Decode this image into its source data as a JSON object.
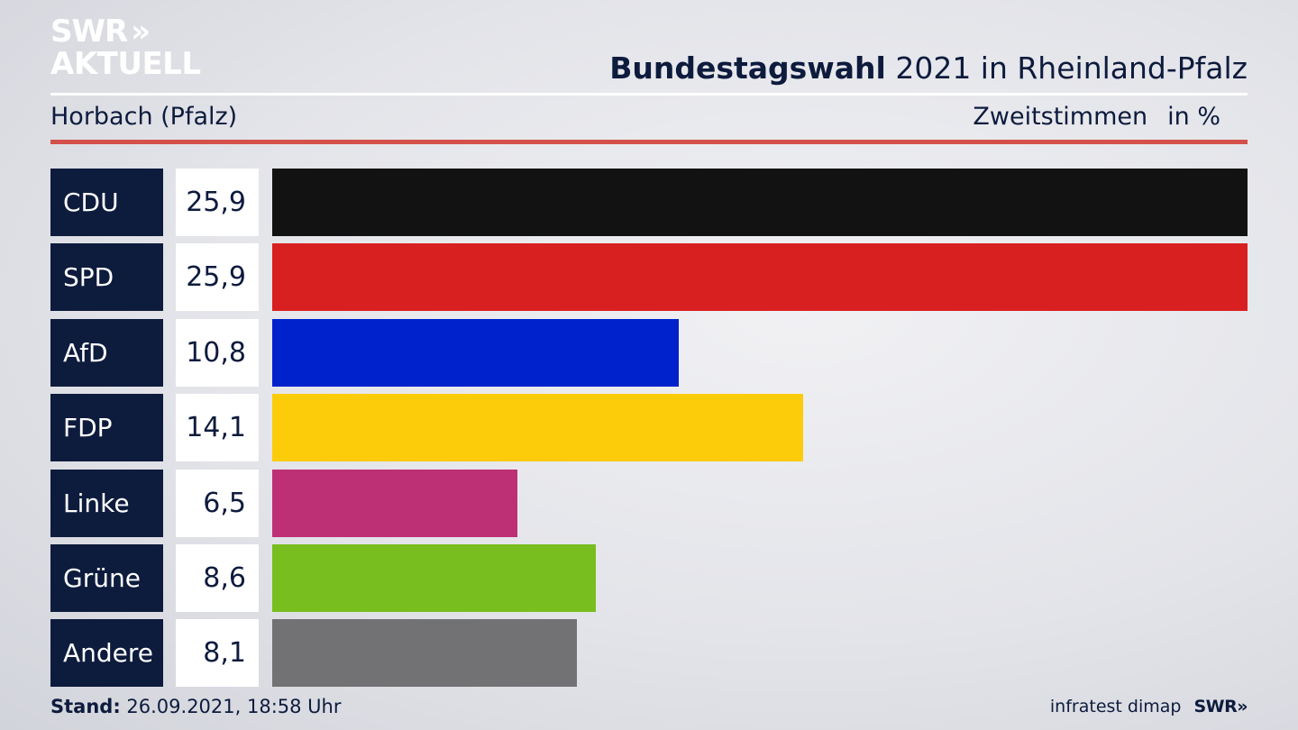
{
  "brand": {
    "logo_top": "SWR",
    "logo_chevrons": "»",
    "logo_bottom": "AKTUELL",
    "footer_source": "infratest dimap",
    "footer_logo": "SWR»"
  },
  "header": {
    "title_bold": "Bundestagswahl",
    "title_rest": " 2021 in Rheinland-Pfalz",
    "location": "Horbach (Pfalz)",
    "measure": "Zweitstimmen",
    "unit": "in %"
  },
  "footer": {
    "stand_label": "Stand:",
    "stand_value": " 26.09.2021, 18:58 Uhr"
  },
  "colors": {
    "navy": "#0d1b3d",
    "accent_rule": "#d5504a"
  },
  "chart_data": {
    "type": "bar",
    "orientation": "horizontal",
    "categories": [
      "CDU",
      "SPD",
      "AfD",
      "FDP",
      "Linke",
      "Grüne",
      "Andere"
    ],
    "values": [
      25.9,
      25.9,
      10.8,
      14.1,
      6.5,
      8.6,
      8.1
    ],
    "value_labels": [
      "25,9",
      "25,9",
      "10,8",
      "14,1",
      "6,5",
      "8,6",
      "8,1"
    ],
    "colors": [
      "#121212",
      "#d92020",
      "#0022cc",
      "#fccc0a",
      "#be3075",
      "#78be1e",
      "#727274"
    ],
    "xlim": [
      0,
      25.9
    ],
    "grid": false
  }
}
